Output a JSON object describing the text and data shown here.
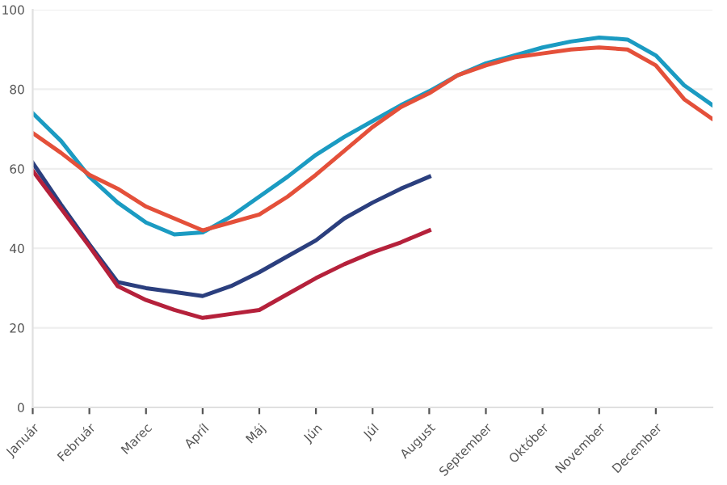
{
  "chart_data": {
    "type": "line",
    "ylim": [
      0,
      100
    ],
    "yticks": [
      0,
      20,
      40,
      60,
      80,
      100
    ],
    "categories": [
      "Január",
      null,
      "Február",
      null,
      "Marec",
      null,
      "Apríl",
      null,
      "Máj",
      null,
      "Jún",
      null,
      "Júl",
      null,
      "August",
      null,
      "September",
      null,
      "Október",
      null,
      "November",
      null,
      "December",
      null,
      null
    ],
    "grid": "y",
    "marker": "none",
    "line_style": "solid",
    "series": [
      {
        "color": "#1b9bc2",
        "values": [
          74,
          67,
          58,
          51.5,
          46.5,
          43.5,
          44,
          48,
          53,
          58,
          63.5,
          68,
          72,
          76,
          79.5,
          83.5,
          86.5,
          88.5,
          90.5,
          92,
          93,
          92.5,
          88.5,
          81,
          76
        ]
      },
      {
        "color": "#e4503a",
        "values": [
          69,
          64,
          58.5,
          55,
          50.5,
          47.5,
          44.5,
          46.5,
          48.5,
          53,
          58.5,
          64.5,
          70.5,
          75.5,
          79,
          83.5,
          86,
          88,
          89,
          90,
          90.5,
          90,
          86,
          77.5,
          72.5
        ]
      },
      {
        "color": "#2b3f7e",
        "values": [
          61.5,
          51,
          41,
          31.5,
          30,
          29,
          28,
          30.5,
          34,
          38,
          42,
          47.5,
          51.5,
          55,
          58,
          null,
          null,
          null,
          null,
          null,
          null,
          null,
          null,
          null,
          null
        ]
      },
      {
        "color": "#b5213b",
        "values": [
          59.5,
          50,
          40.5,
          30.5,
          27,
          24.5,
          22.5,
          23.5,
          24.5,
          28.5,
          32.5,
          36,
          39,
          41.5,
          44.5,
          null,
          null,
          null,
          null,
          null,
          null,
          null,
          null,
          null,
          null
        ]
      }
    ]
  }
}
